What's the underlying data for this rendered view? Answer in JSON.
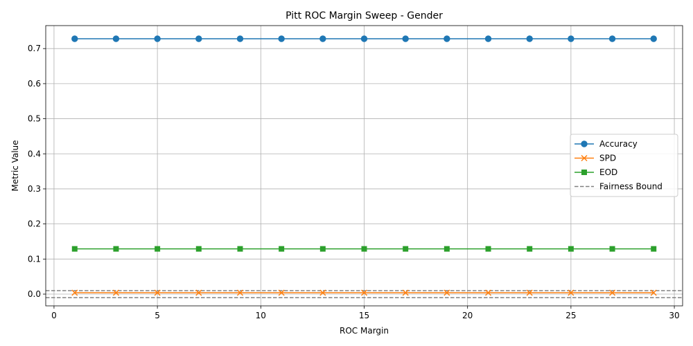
{
  "chart_data": {
    "type": "line",
    "title": "Pitt ROC Margin Sweep - Gender",
    "xlabel": "ROC Margin",
    "ylabel": "Metric Value",
    "xlim": [
      -0.4,
      30.4
    ],
    "ylim": [
      -0.0335,
      0.7655
    ],
    "xticks": [
      0,
      5,
      10,
      15,
      20,
      25,
      30
    ],
    "yticks": [
      0.0,
      0.1,
      0.2,
      0.3,
      0.4,
      0.5,
      0.6,
      0.7
    ],
    "grid": true,
    "legend_position": "center-right",
    "x": [
      1,
      3,
      5,
      7,
      9,
      11,
      13,
      15,
      17,
      19,
      21,
      23,
      25,
      27,
      29
    ],
    "series": [
      {
        "name": "Accuracy",
        "color": "#1f77b4",
        "marker": "circle",
        "values": [
          0.728,
          0.728,
          0.728,
          0.728,
          0.728,
          0.728,
          0.728,
          0.728,
          0.728,
          0.728,
          0.728,
          0.728,
          0.728,
          0.728,
          0.728
        ]
      },
      {
        "name": "SPD",
        "color": "#ff7f0e",
        "marker": "x",
        "values": [
          0.004,
          0.004,
          0.004,
          0.004,
          0.004,
          0.004,
          0.004,
          0.004,
          0.004,
          0.004,
          0.004,
          0.004,
          0.004,
          0.004,
          0.004
        ]
      },
      {
        "name": "EOD",
        "color": "#2ca02c",
        "marker": "square",
        "values": [
          0.129,
          0.129,
          0.129,
          0.129,
          0.129,
          0.129,
          0.129,
          0.129,
          0.129,
          0.129,
          0.129,
          0.129,
          0.129,
          0.129,
          0.129
        ]
      }
    ],
    "reference_lines": {
      "name": "Fairness Bound",
      "color": "#808080",
      "style": "dashed",
      "y_values": [
        0.01,
        -0.01
      ]
    }
  }
}
